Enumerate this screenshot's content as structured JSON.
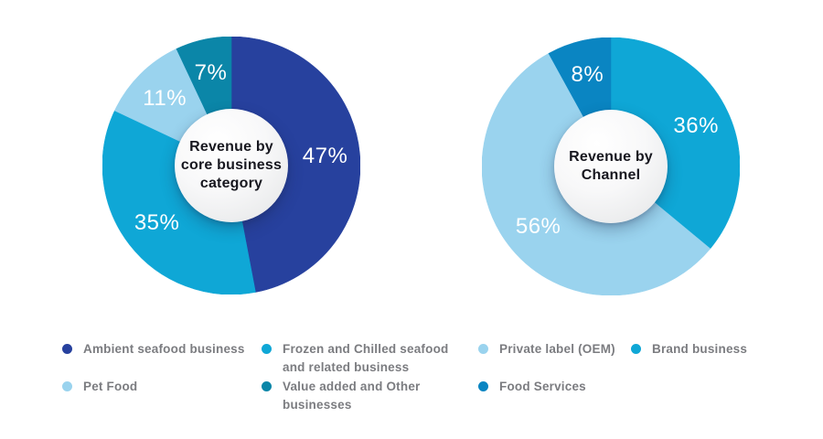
{
  "page": {
    "background_color": "#ffffff",
    "legend_text_color": "#7b7c80",
    "pct_label_color": "#ffffff",
    "center_text_color": "#17171f"
  },
  "chart_data": [
    {
      "type": "donut",
      "title": "Revenue by core business category",
      "center_label_lines": [
        "Revenue by",
        "core business",
        "category"
      ],
      "start_angle_deg": 0,
      "direction": "clockwise",
      "slices": [
        {
          "label": "Ambient seafood business",
          "value": 47,
          "pct_label": "47%",
          "color": "#27419E"
        },
        {
          "label": "Frozen and Chilled seafood and related business",
          "value": 35,
          "pct_label": "35%",
          "color": "#0FA7D6"
        },
        {
          "label": "Pet Food",
          "value": 11,
          "pct_label": "11%",
          "color": "#9AD3EE"
        },
        {
          "label": "Value added and Other businesses",
          "value": 7,
          "pct_label": "7%",
          "color": "#0B86A8"
        }
      ]
    },
    {
      "type": "donut",
      "title": "Revenue by Channel",
      "center_label_lines": [
        "Revenue by",
        "Channel"
      ],
      "start_angle_deg": 0,
      "direction": "clockwise",
      "slices": [
        {
          "label": "Brand business",
          "value": 36,
          "pct_label": "36%",
          "color": "#0FA7D6"
        },
        {
          "label": "Private label (OEM)",
          "value": 56,
          "pct_label": "56%",
          "color": "#9AD3EE"
        },
        {
          "label": "Food Services",
          "value": 8,
          "pct_label": "8%",
          "color": "#0A85C2"
        }
      ]
    }
  ],
  "legend": {
    "left": {
      "columns": [
        {
          "items": [
            {
              "label": "Ambient seafood business",
              "color": "#27419E"
            },
            {
              "label": "Pet Food",
              "color": "#9AD3EE"
            }
          ]
        },
        {
          "items": [
            {
              "label": "Frozen and Chilled seafood\nand related business",
              "color": "#0FA7D6"
            },
            {
              "label": "Value added and Other\nbusinesses",
              "color": "#0B86A8"
            }
          ]
        }
      ]
    },
    "right": {
      "columns": [
        {
          "items": [
            {
              "label": "Private label (OEM)",
              "color": "#9AD3EE"
            },
            {
              "label": "Food Services",
              "color": "#0A85C2"
            }
          ]
        },
        {
          "items": [
            {
              "label": "Brand business",
              "color": "#0FA7D6"
            }
          ]
        }
      ]
    }
  }
}
